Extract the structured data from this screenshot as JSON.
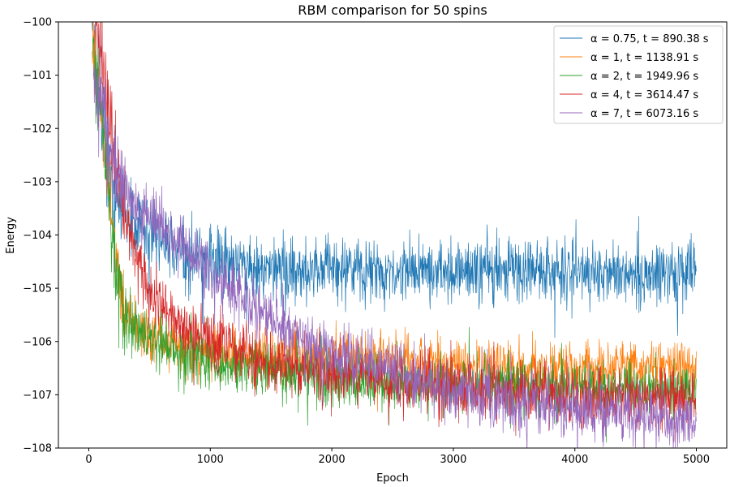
{
  "chart_data": {
    "type": "line",
    "title": "RBM comparison for 50 spins",
    "xlabel": "Epoch",
    "ylabel": "Energy",
    "xlim": [
      -250,
      5250
    ],
    "ylim": [
      -108,
      -100
    ],
    "xticks": [
      0,
      1000,
      2000,
      3000,
      4000,
      5000
    ],
    "xtick_labels": [
      "0",
      "1000",
      "2000",
      "3000",
      "4000",
      "5000"
    ],
    "yticks": [
      -108,
      -107,
      -106,
      -105,
      -104,
      -103,
      -102,
      -101,
      -100
    ],
    "ytick_labels": [
      "−108",
      "−107",
      "−106",
      "−105",
      "−104",
      "−103",
      "−102",
      "−101",
      "−100"
    ],
    "grid": false,
    "legend_position": "top-right",
    "series": [
      {
        "name": "α = 0.75, t = 890.38 s",
        "alpha": "0.75",
        "time": "890.38 s",
        "color": "#1f77b4",
        "x": [
          0,
          100,
          200,
          300,
          500,
          700,
          1000,
          1500,
          2000,
          3000,
          4000,
          5000
        ],
        "y": [
          -100.0,
          -101.8,
          -103.2,
          -103.6,
          -104.0,
          -104.3,
          -104.45,
          -104.6,
          -104.65,
          -104.7,
          -104.7,
          -104.7
        ],
        "noise": 0.3
      },
      {
        "name": "α = 1, t = 1138.91 s",
        "alpha": "1",
        "time": "1138.91 s",
        "color": "#ff7f0e",
        "x": [
          0,
          100,
          200,
          300,
          500,
          1000,
          1500,
          2000,
          2500,
          3000,
          4000,
          5000
        ],
        "y": [
          -100.0,
          -101.6,
          -104.0,
          -105.5,
          -105.9,
          -106.2,
          -106.3,
          -106.35,
          -106.4,
          -106.45,
          -106.5,
          -106.5
        ],
        "noise": 0.25
      },
      {
        "name": "α = 2, t = 1949.96 s",
        "alpha": "2",
        "time": "1949.96 s",
        "color": "#2ca02c",
        "x": [
          0,
          100,
          200,
          300,
          500,
          1000,
          1500,
          2000,
          2500,
          3000,
          4000,
          5000
        ],
        "y": [
          -100.0,
          -101.6,
          -104.2,
          -105.6,
          -106.0,
          -106.4,
          -106.6,
          -106.7,
          -106.75,
          -106.8,
          -106.85,
          -106.9
        ],
        "noise": 0.25
      },
      {
        "name": "α = 4, t = 3614.47 s",
        "alpha": "4",
        "time": "3614.47 s",
        "color": "#d62728",
        "x": [
          0,
          100,
          200,
          300,
          500,
          700,
          1000,
          1500,
          2000,
          3000,
          4000,
          5000
        ],
        "y": [
          -99.8,
          -100.4,
          -102.2,
          -103.8,
          -105.0,
          -105.6,
          -106.0,
          -106.4,
          -106.6,
          -106.85,
          -107.0,
          -107.05
        ],
        "noise": 0.28
      },
      {
        "name": "α = 7, t = 6073.16 s",
        "alpha": "7",
        "time": "6073.16 s",
        "color": "#9467bd",
        "x": [
          0,
          100,
          200,
          300,
          500,
          700,
          1000,
          1500,
          2000,
          2500,
          3000,
          4000,
          5000
        ],
        "y": [
          -100.3,
          -101.5,
          -102.7,
          -103.2,
          -103.7,
          -104.1,
          -104.7,
          -105.6,
          -106.2,
          -106.6,
          -106.9,
          -107.3,
          -107.5
        ],
        "noise": 0.28
      }
    ]
  }
}
